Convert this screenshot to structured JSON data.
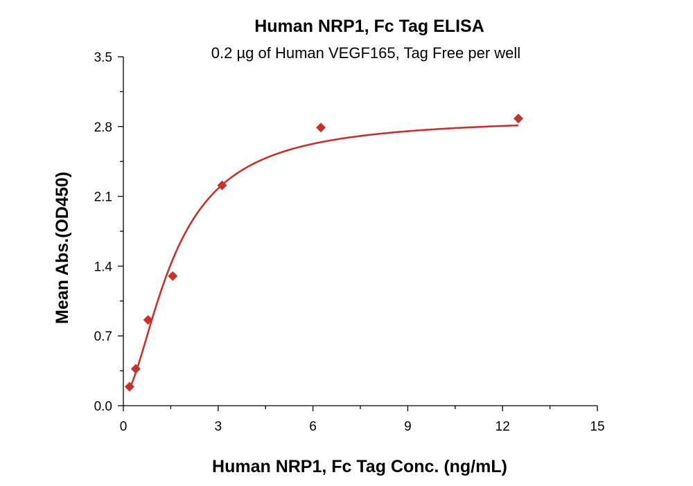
{
  "chart_data": {
    "type": "scatter",
    "title": "Human NRP1, Fc Tag ELISA",
    "subtitle": "0.2 µg of Human VEGF165, Tag Free per well",
    "xlabel": "Human NRP1, Fc Tag Conc. (ng/mL)",
    "ylabel": "Mean Abs.(OD450)",
    "xlim": [
      0,
      15
    ],
    "ylim": [
      0,
      3.5
    ],
    "xticks": [
      "0",
      "3",
      "6",
      "9",
      "12",
      "15"
    ],
    "yticks": [
      "0.0",
      "0.7",
      "1.4",
      "2.1",
      "2.8",
      "3.5"
    ],
    "grid": false,
    "series": [
      {
        "color": "#c8302c",
        "marker": "diamond",
        "x": [
          0.195,
          0.391,
          0.781,
          1.563,
          3.125,
          6.25,
          12.5
        ],
        "y": [
          0.19,
          0.37,
          0.86,
          1.3,
          2.21,
          2.79,
          2.88
        ],
        "fit_curve": true
      }
    ]
  }
}
